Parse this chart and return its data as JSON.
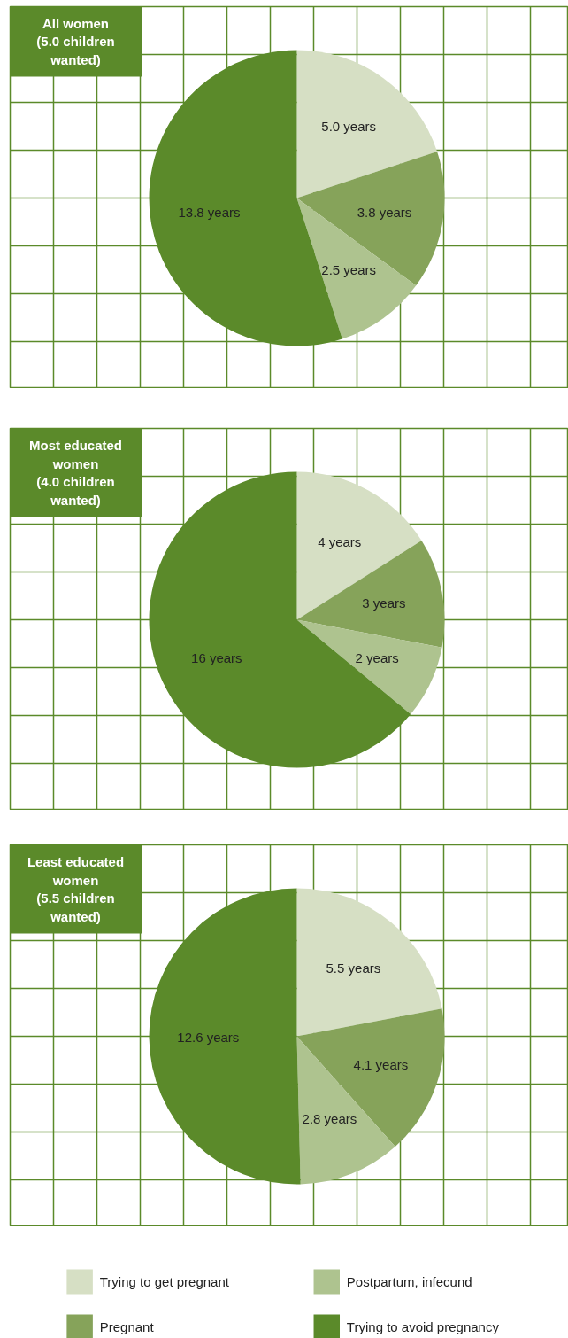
{
  "chart_data": [
    {
      "type": "pie",
      "title": "All women\n(5.0 children\nwanted)",
      "categories": [
        "Trying to get pregnant",
        "Pregnant",
        "Postpartum, infecund",
        "Trying to avoid pregnancy"
      ],
      "values": [
        5.0,
        3.8,
        2.5,
        13.8
      ],
      "value_labels": [
        "5.0 years",
        "3.8 years",
        "2.5 years",
        "13.8 years"
      ],
      "colors": [
        "#d6dfc4",
        "#86a35a",
        "#aec38f",
        "#5b8a2a"
      ],
      "grid": true,
      "legend": "bottom"
    },
    {
      "type": "pie",
      "title": "Most educated\nwomen\n(4.0 children\nwanted)",
      "categories": [
        null,
        null,
        null,
        null
      ],
      "values": [
        4,
        3,
        2,
        16
      ],
      "value_labels": [
        "4 years",
        "3 years",
        "2 years",
        "16 years"
      ],
      "colors": [
        "#d6dfc4",
        "#86a35a",
        "#aec38f",
        "#5b8a2a"
      ],
      "grid": true
    },
    {
      "type": "pie",
      "title": "Least educated\nwomen\n(5.5 children\nwanted)",
      "categories": [
        null,
        null,
        null,
        null
      ],
      "values": [
        5.5,
        4.1,
        2.8,
        12.6
      ],
      "value_labels": [
        "5.5 years",
        "4.1 years",
        "2.8 years",
        "12.6 years"
      ],
      "colors": [
        "#d6dfc4",
        "#86a35a",
        "#aec38f",
        "#5b8a2a"
      ],
      "grid": true
    }
  ]
}
